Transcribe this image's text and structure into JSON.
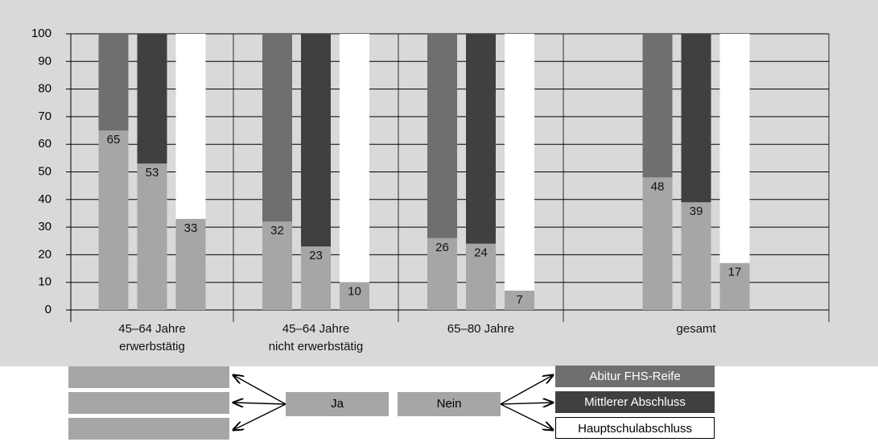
{
  "chart_data": {
    "type": "stacked_bar",
    "categories": [
      "45–64 Jahre\nerwerbstätig",
      "45–64 Jahre\nnicht erwerbstätig",
      "65–80 Jahre",
      "gesamt"
    ],
    "ja_label": "Ja",
    "nein_label": "Nein",
    "ja_color": "#a6a6a6",
    "series": [
      {
        "name": "Abitur FHS-Reife",
        "color": "#6f6f6f",
        "ja": [
          65,
          32,
          26,
          48
        ],
        "nein": [
          35,
          68,
          74,
          52
        ]
      },
      {
        "name": "Mittlerer Abschluss",
        "color": "#404040",
        "ja": [
          53,
          23,
          24,
          39
        ],
        "nein": [
          47,
          77,
          76,
          61
        ]
      },
      {
        "name": "Hauptschulabschluss",
        "color": "#ffffff",
        "ja": [
          33,
          10,
          7,
          17
        ],
        "nein": [
          67,
          90,
          93,
          83
        ]
      }
    ],
    "ylim": [
      0,
      100
    ],
    "yticks": [
      0,
      10,
      20,
      30,
      40,
      50,
      60,
      70,
      80,
      90,
      100
    ],
    "grid": true
  }
}
